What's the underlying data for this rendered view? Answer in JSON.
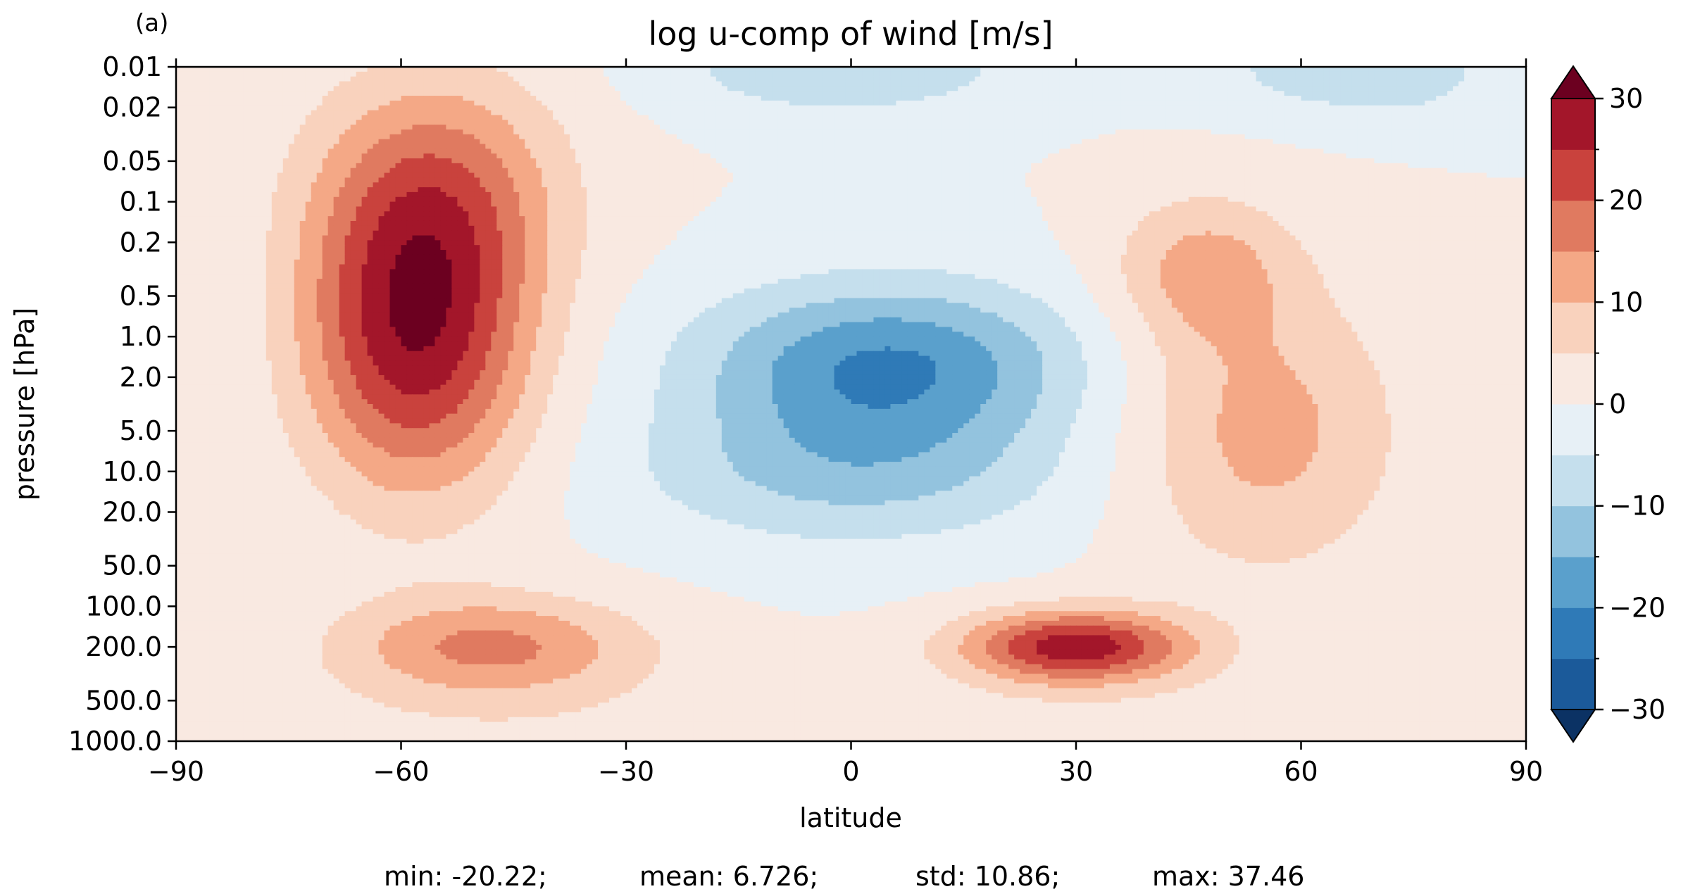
{
  "chart_data": {
    "type": "heatmap",
    "panel_label": "(a)",
    "title": "log u-comp of wind [m/s]",
    "xlabel": "latitude",
    "ylabel": "pressure [hPa]",
    "xlim": [
      -90,
      90
    ],
    "ylim": [
      1000.0,
      0.01
    ],
    "y_scale": "log",
    "x_ticks": [
      -90,
      -60,
      -30,
      0,
      30,
      60,
      90
    ],
    "x_tick_labels": [
      "−90",
      "−60",
      "−30",
      "0",
      "30",
      "60",
      "90"
    ],
    "y_ticks": [
      0.01,
      0.02,
      0.05,
      0.1,
      0.2,
      0.5,
      1.0,
      2.0,
      5.0,
      10.0,
      20.0,
      50.0,
      100.0,
      200.0,
      500.0,
      1000.0
    ],
    "y_tick_labels": [
      "0.01",
      "0.02",
      "0.05",
      "0.1",
      "0.2",
      "0.5",
      "1.0",
      "2.0",
      "5.0",
      "10.0",
      "20.0",
      "50.0",
      "100.0",
      "200.0",
      "500.0",
      "1000.0"
    ],
    "colorbar": {
      "levels": [
        -30,
        -25,
        -20,
        -15,
        -10,
        -5,
        0,
        5,
        10,
        15,
        20,
        25,
        30
      ],
      "colors": [
        "#1b5a9a",
        "#2f7ab7",
        "#5aa0cc",
        "#93c3de",
        "#c5dfed",
        "#e7f0f6",
        "#f9e9e1",
        "#f9d2bd",
        "#f4a886",
        "#e07a60",
        "#c9423d",
        "#a3162a"
      ],
      "under_color": "#0b3264",
      "over_color": "#6c0020",
      "extend": "both",
      "tick_values": [
        -30,
        -20,
        -10,
        0,
        10,
        20,
        30
      ],
      "tick_labels": [
        "−30",
        "−20",
        "−10",
        "0",
        "10",
        "20",
        "30"
      ]
    },
    "stats": {
      "min_text": "min: -20.22;",
      "mean_text": "mean: 6.726;",
      "std_text": "std: 10.86;",
      "max_text": "max: 37.46"
    }
  }
}
